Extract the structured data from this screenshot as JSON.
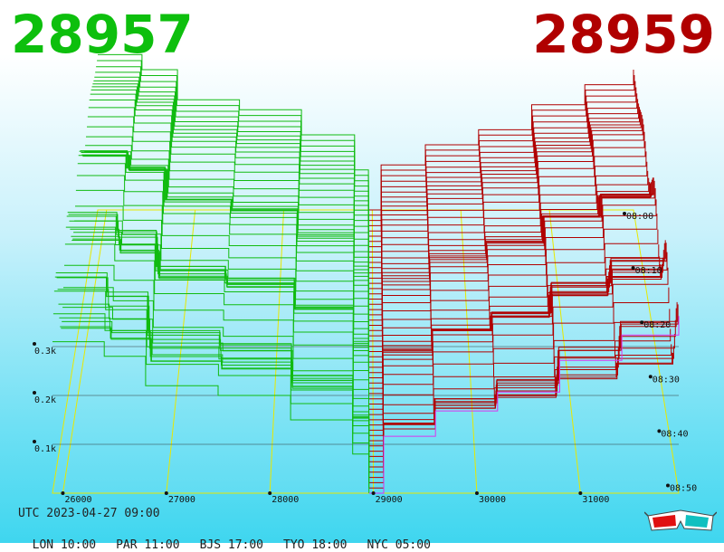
{
  "header": {
    "bid_price": "28957",
    "ask_price": "28959",
    "bid_color": "#0dbf0d",
    "ask_color": "#b00000"
  },
  "footer": {
    "utc": "UTC 2023-04-27 09:00",
    "zones": [
      "LON 10:00",
      "PAR 11:00",
      "BJS 17:00",
      "TYO 18:00",
      "NYC 05:00"
    ]
  },
  "icons": {
    "stereo": "anaglyph-3d-glasses-icon"
  },
  "chart_data": {
    "type": "area",
    "x_ticks": [
      26000,
      27000,
      28000,
      29000,
      30000,
      31000
    ],
    "xlim": [
      25900,
      31950
    ],
    "z_ticks": [
      "0.1k",
      "0.2k",
      "0.3k"
    ],
    "zlim": [
      0,
      0.55
    ],
    "time_ticks": [
      "08:00",
      "08:10",
      "08:20",
      "08:30",
      "08:40",
      "08:50"
    ],
    "snapshot_count": 55,
    "grid": true,
    "series": [
      {
        "side": "bid",
        "color": "#11bb11",
        "x": [
          25900,
          26400,
          26800,
          27500,
          28200,
          28800,
          28957
        ],
        "depth": [
          0.31,
          0.28,
          0.22,
          0.2,
          0.15,
          0.08,
          0.0
        ]
      },
      {
        "side": "ask",
        "color": "#b00000",
        "x": [
          28959,
          29100,
          29600,
          30200,
          30800,
          31400,
          31950
        ],
        "depth": [
          0.0,
          0.09,
          0.13,
          0.16,
          0.21,
          0.25,
          0.28
        ]
      }
    ]
  }
}
